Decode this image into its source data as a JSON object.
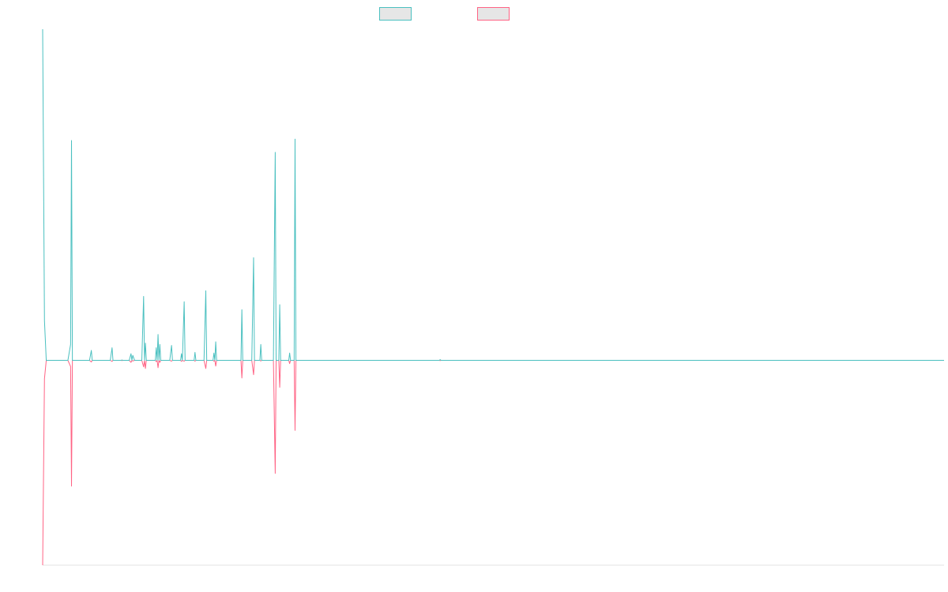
{
  "chart_data": {
    "type": "line",
    "title": "",
    "xlabel": "",
    "ylabel": "",
    "grid": false,
    "legend_position": "top-center",
    "xlim": [
      0,
      1000
    ],
    "ylim": [
      -1000,
      1000
    ],
    "series": [
      {
        "color": "#4bc0c0",
        "fill": "#e6e6e6",
        "points": [
          [
            0,
            1000
          ],
          [
            2,
            120
          ],
          [
            4,
            0
          ],
          [
            28,
            0
          ],
          [
            31,
            48
          ],
          [
            32,
            664
          ],
          [
            33,
            0
          ],
          [
            52,
            0
          ],
          [
            54,
            30
          ],
          [
            55,
            0
          ],
          [
            75,
            0
          ],
          [
            77,
            38
          ],
          [
            78,
            0
          ],
          [
            87,
            0
          ],
          [
            88,
            1
          ],
          [
            89,
            0
          ],
          [
            96,
            0
          ],
          [
            98,
            20
          ],
          [
            99,
            0
          ],
          [
            100,
            15
          ],
          [
            102,
            0
          ],
          [
            110,
            0
          ],
          [
            112,
            193
          ],
          [
            113,
            0
          ],
          [
            114,
            52
          ],
          [
            115,
            0
          ],
          [
            125,
            0
          ],
          [
            126,
            38
          ],
          [
            127,
            0
          ],
          [
            128,
            78
          ],
          [
            129,
            0
          ],
          [
            130,
            48
          ],
          [
            131,
            0
          ],
          [
            141,
            0
          ],
          [
            143,
            45
          ],
          [
            144,
            0
          ],
          [
            153,
            0
          ],
          [
            154,
            20
          ],
          [
            155,
            0
          ],
          [
            157,
            177
          ],
          [
            158,
            0
          ],
          [
            168,
            0
          ],
          [
            169,
            24
          ],
          [
            170,
            0
          ],
          [
            179,
            0
          ],
          [
            181,
            210
          ],
          [
            182,
            0
          ],
          [
            189,
            0
          ],
          [
            190,
            22
          ],
          [
            191,
            0
          ],
          [
            192,
            56
          ],
          [
            193,
            0
          ],
          [
            220,
            0
          ],
          [
            221,
            153
          ],
          [
            222,
            0
          ],
          [
            232,
            0
          ],
          [
            234,
            310
          ],
          [
            235,
            0
          ],
          [
            241,
            0
          ],
          [
            242,
            48
          ],
          [
            243,
            0
          ],
          [
            256,
            0
          ],
          [
            258,
            628
          ],
          [
            259,
            0
          ],
          [
            262,
            0
          ],
          [
            263,
            168
          ],
          [
            264,
            0
          ],
          [
            273,
            0
          ],
          [
            274,
            22
          ],
          [
            275,
            0
          ],
          [
            279,
            0
          ],
          [
            280,
            668
          ],
          [
            281,
            0
          ],
          [
            440,
            0
          ],
          [
            441,
            2
          ],
          [
            442,
            0
          ],
          [
            1000,
            0
          ]
        ]
      },
      {
        "color": "#ff6384",
        "fill": "#e6e6e6",
        "points": [
          [
            0,
            -1000
          ],
          [
            2,
            -90
          ],
          [
            4,
            0
          ],
          [
            28,
            0
          ],
          [
            31,
            -30
          ],
          [
            32,
            -614
          ],
          [
            33,
            0
          ],
          [
            52,
            0
          ],
          [
            54,
            -8
          ],
          [
            55,
            0
          ],
          [
            75,
            0
          ],
          [
            77,
            -5
          ],
          [
            78,
            0
          ],
          [
            87,
            0
          ],
          [
            88,
            -1
          ],
          [
            89,
            0
          ],
          [
            96,
            0
          ],
          [
            98,
            -10
          ],
          [
            99,
            0
          ],
          [
            100,
            -3
          ],
          [
            102,
            0
          ],
          [
            110,
            0
          ],
          [
            112,
            -32
          ],
          [
            113,
            0
          ],
          [
            114,
            -40
          ],
          [
            115,
            0
          ],
          [
            125,
            0
          ],
          [
            126,
            -6
          ],
          [
            127,
            0
          ],
          [
            128,
            -36
          ],
          [
            129,
            0
          ],
          [
            130,
            -10
          ],
          [
            131,
            0
          ],
          [
            141,
            0
          ],
          [
            143,
            -4
          ],
          [
            144,
            0
          ],
          [
            153,
            0
          ],
          [
            154,
            -5
          ],
          [
            155,
            0
          ],
          [
            157,
            -4
          ],
          [
            158,
            0
          ],
          [
            168,
            0
          ],
          [
            169,
            -4
          ],
          [
            170,
            0
          ],
          [
            179,
            0
          ],
          [
            181,
            -40
          ],
          [
            182,
            0
          ],
          [
            189,
            0
          ],
          [
            190,
            -4
          ],
          [
            191,
            0
          ],
          [
            192,
            -28
          ],
          [
            193,
            0
          ],
          [
            220,
            0
          ],
          [
            221,
            -86
          ],
          [
            222,
            0
          ],
          [
            232,
            0
          ],
          [
            234,
            -70
          ],
          [
            235,
            0
          ],
          [
            241,
            0
          ],
          [
            242,
            -3
          ],
          [
            243,
            0
          ],
          [
            256,
            0
          ],
          [
            258,
            -552
          ],
          [
            259,
            0
          ],
          [
            262,
            0
          ],
          [
            263,
            -132
          ],
          [
            264,
            0
          ],
          [
            273,
            0
          ],
          [
            274,
            -16
          ],
          [
            275,
            0
          ],
          [
            279,
            0
          ],
          [
            280,
            -342
          ],
          [
            281,
            0
          ],
          [
            440,
            0
          ],
          [
            441,
            -1
          ],
          [
            442,
            0
          ],
          [
            1000,
            0
          ]
        ]
      }
    ]
  }
}
